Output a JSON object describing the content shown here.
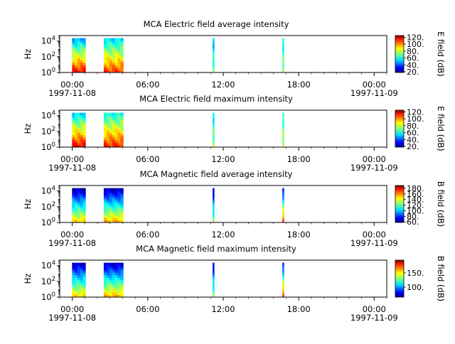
{
  "chart_data": [
    {
      "type": "heatmap",
      "title": "MCA  Electric field average intensity",
      "ylabel": "Hz",
      "y_scale": "log",
      "ylim": [
        1,
        50000
      ],
      "y_ticks": [
        {
          "v": 1,
          "b": "10",
          "e": "0"
        },
        {
          "v": 100,
          "b": "10",
          "e": "2"
        },
        {
          "v": 10000,
          "b": "10",
          "e": "4"
        }
      ],
      "x_ticks": [
        {
          "t": "00:00",
          "d": "1997-11-08"
        },
        {
          "t": "06:00",
          "d": ""
        },
        {
          "t": "12:00",
          "d": ""
        },
        {
          "t": "18:00",
          "d": ""
        },
        {
          "t": "00:00",
          "d": "1997-11-09"
        }
      ],
      "x_range_hours": [
        -1,
        25
      ],
      "colorbar": {
        "label": "E field (dB)",
        "min": 18,
        "max": 125,
        "ticks": [
          "20.",
          "40.",
          "60.",
          "80.",
          "100.",
          "120."
        ],
        "tick_values": [
          20,
          40,
          60,
          80,
          100,
          120
        ]
      },
      "colormap": "jet",
      "intervals_hours": [
        {
          "start": -0.02,
          "end": 1.05,
          "level_low": 110,
          "level_high": 50
        },
        {
          "start": 2.5,
          "end": 4.05,
          "level_low": 105,
          "level_high": 55
        },
        {
          "start": 11.15,
          "end": 11.28,
          "level_low": 70,
          "level_high": 50
        },
        {
          "start": 16.7,
          "end": 16.82,
          "level_low": 75,
          "level_high": 55
        }
      ]
    },
    {
      "type": "heatmap",
      "title": "MCA  Electric field maximum intensity",
      "ylabel": "Hz",
      "y_scale": "log",
      "ylim": [
        1,
        50000
      ],
      "y_ticks": [
        {
          "v": 1,
          "b": "10",
          "e": "0"
        },
        {
          "v": 100,
          "b": "10",
          "e": "2"
        },
        {
          "v": 10000,
          "b": "10",
          "e": "4"
        }
      ],
      "x_ticks": [
        {
          "t": "00:00",
          "d": "1997-11-08"
        },
        {
          "t": "06:00",
          "d": ""
        },
        {
          "t": "12:00",
          "d": ""
        },
        {
          "t": "18:00",
          "d": ""
        },
        {
          "t": "00:00",
          "d": "1997-11-09"
        }
      ],
      "x_range_hours": [
        -1,
        25
      ],
      "colorbar": {
        "label": "E field (dB)",
        "min": 18,
        "max": 125,
        "ticks": [
          "20.",
          "40.",
          "60.",
          "80.",
          "100.",
          "120."
        ],
        "tick_values": [
          20,
          40,
          60,
          80,
          100,
          120
        ]
      },
      "colormap": "jet",
      "intervals_hours": [
        {
          "start": -0.02,
          "end": 1.05,
          "level_low": 112,
          "level_high": 55
        },
        {
          "start": 2.5,
          "end": 4.05,
          "level_low": 108,
          "level_high": 60
        },
        {
          "start": 11.15,
          "end": 11.28,
          "level_low": 75,
          "level_high": 55
        },
        {
          "start": 16.7,
          "end": 16.82,
          "level_low": 80,
          "level_high": 60
        }
      ]
    },
    {
      "type": "heatmap",
      "title": "MCA  Magnetic field average intensity",
      "ylabel": "Hz",
      "y_scale": "log",
      "ylim": [
        1,
        50000
      ],
      "y_ticks": [
        {
          "v": 1,
          "b": "10",
          "e": "0"
        },
        {
          "v": 100,
          "b": "10",
          "e": "2"
        },
        {
          "v": 10000,
          "b": "10",
          "e": "4"
        }
      ],
      "x_ticks": [
        {
          "t": "00:00",
          "d": "1997-11-08"
        },
        {
          "t": "06:00",
          "d": ""
        },
        {
          "t": "12:00",
          "d": ""
        },
        {
          "t": "18:00",
          "d": ""
        },
        {
          "t": "00:00",
          "d": "1997-11-09"
        }
      ],
      "x_range_hours": [
        -1,
        25
      ],
      "colorbar": {
        "label": "B field (dB)",
        "min": 58,
        "max": 190,
        "ticks": [
          "60.",
          "80.",
          "100.",
          "120.",
          "140.",
          "160.",
          "180."
        ],
        "tick_values": [
          60,
          80,
          100,
          120,
          140,
          160,
          180
        ]
      },
      "colormap": "jet",
      "intervals_hours": [
        {
          "start": -0.02,
          "end": 1.05,
          "level_low": 145,
          "level_high": 65
        },
        {
          "start": 2.5,
          "end": 4.05,
          "level_low": 150,
          "level_high": 65
        },
        {
          "start": 11.15,
          "end": 11.28,
          "level_low": 125,
          "level_high": 70
        },
        {
          "start": 16.7,
          "end": 16.82,
          "level_low": 170,
          "level_high": 70
        }
      ]
    },
    {
      "type": "heatmap",
      "title": "MCA  Magnetic field maximum intensity",
      "ylabel": "Hz",
      "y_scale": "log",
      "ylim": [
        1,
        50000
      ],
      "y_ticks": [
        {
          "v": 1,
          "b": "10",
          "e": "0"
        },
        {
          "v": 100,
          "b": "10",
          "e": "2"
        },
        {
          "v": 10000,
          "b": "10",
          "e": "4"
        }
      ],
      "x_ticks": [
        {
          "t": "00:00",
          "d": "1997-11-08"
        },
        {
          "t": "06:00",
          "d": ""
        },
        {
          "t": "12:00",
          "d": ""
        },
        {
          "t": "18:00",
          "d": ""
        },
        {
          "t": "00:00",
          "d": "1997-11-09"
        }
      ],
      "x_range_hours": [
        -1,
        25
      ],
      "colorbar": {
        "label": "B field (dB)",
        "min": 65,
        "max": 195,
        "ticks": [
          "100.",
          "150."
        ],
        "tick_values": [
          100,
          150
        ]
      },
      "colormap": "jet",
      "intervals_hours": [
        {
          "start": -0.02,
          "end": 1.05,
          "level_low": 150,
          "level_high": 75
        },
        {
          "start": 2.5,
          "end": 4.05,
          "level_low": 155,
          "level_high": 75
        },
        {
          "start": 11.15,
          "end": 11.28,
          "level_low": 130,
          "level_high": 80
        },
        {
          "start": 16.7,
          "end": 16.82,
          "level_low": 175,
          "level_high": 80
        }
      ]
    }
  ]
}
